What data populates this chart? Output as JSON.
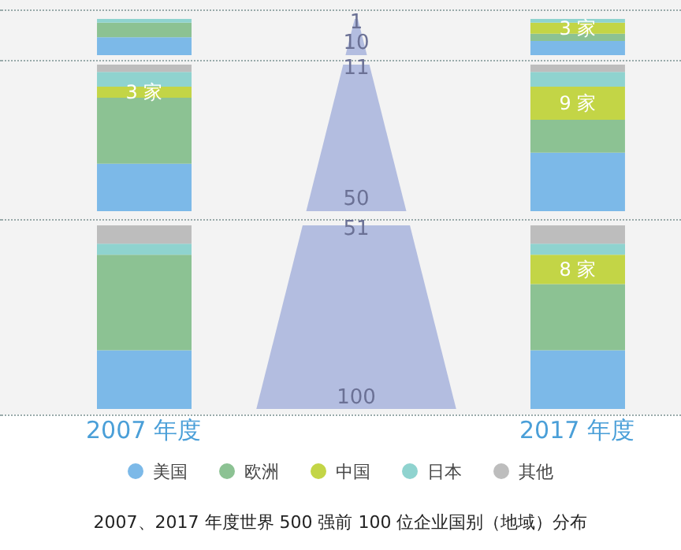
{
  "chart_data": [
    {
      "type": "bar",
      "stacked": true,
      "ylim": [
        0,
        10
      ],
      "tick_labels": false,
      "annotations": [
        "1",
        "10"
      ],
      "series": [
        {
          "color": "#7cb9e8",
          "values": [
            5,
            4
          ]
        },
        {
          "color": "#8cc293",
          "values": [
            4,
            2
          ]
        },
        {
          "color": "#c3d546",
          "values": [
            0,
            3
          ],
          "value_labels": [
            null,
            "3 家"
          ]
        },
        {
          "color": "#8fd3cf",
          "values": [
            1,
            1
          ]
        },
        {
          "color": "#bdbdbd",
          "values": [
            0,
            0
          ]
        }
      ]
    },
    {
      "type": "bar",
      "stacked": true,
      "ylim": [
        0,
        40
      ],
      "tick_labels": false,
      "annotations": [
        "11",
        "50"
      ],
      "series": [
        {
          "color": "#7cb9e8",
          "values": [
            13,
            16
          ]
        },
        {
          "color": "#8cc293",
          "values": [
            18,
            9
          ]
        },
        {
          "color": "#c3d546",
          "values": [
            3,
            9
          ],
          "value_labels": [
            "3 家",
            "9 家"
          ]
        },
        {
          "color": "#8fd3cf",
          "values": [
            4,
            4
          ]
        },
        {
          "color": "#bdbdbd",
          "values": [
            2,
            2
          ]
        }
      ]
    },
    {
      "type": "bar",
      "stacked": true,
      "categories": [
        "2007 年度",
        "2017 年度"
      ],
      "ylim": [
        0,
        50
      ],
      "tick_labels": "x",
      "annotations": [
        "51",
        "100"
      ],
      "legend": "bottom",
      "title": "2007、2017 年度世界 500 强前 100 位企业国别（地域）分布",
      "series": [
        {
          "name": "美国",
          "color": "#7cb9e8",
          "values": [
            16,
            16
          ]
        },
        {
          "name": "欧洲",
          "color": "#8cc293",
          "values": [
            26,
            18
          ]
        },
        {
          "name": "中国",
          "color": "#c3d546",
          "values": [
            0,
            8
          ],
          "value_labels": [
            null,
            "8 家"
          ]
        },
        {
          "name": "日本",
          "color": "#8fd3cf",
          "values": [
            3,
            3
          ]
        },
        {
          "name": "其他",
          "color": "#bdbdbd",
          "values": [
            5,
            5
          ]
        }
      ]
    }
  ]
}
